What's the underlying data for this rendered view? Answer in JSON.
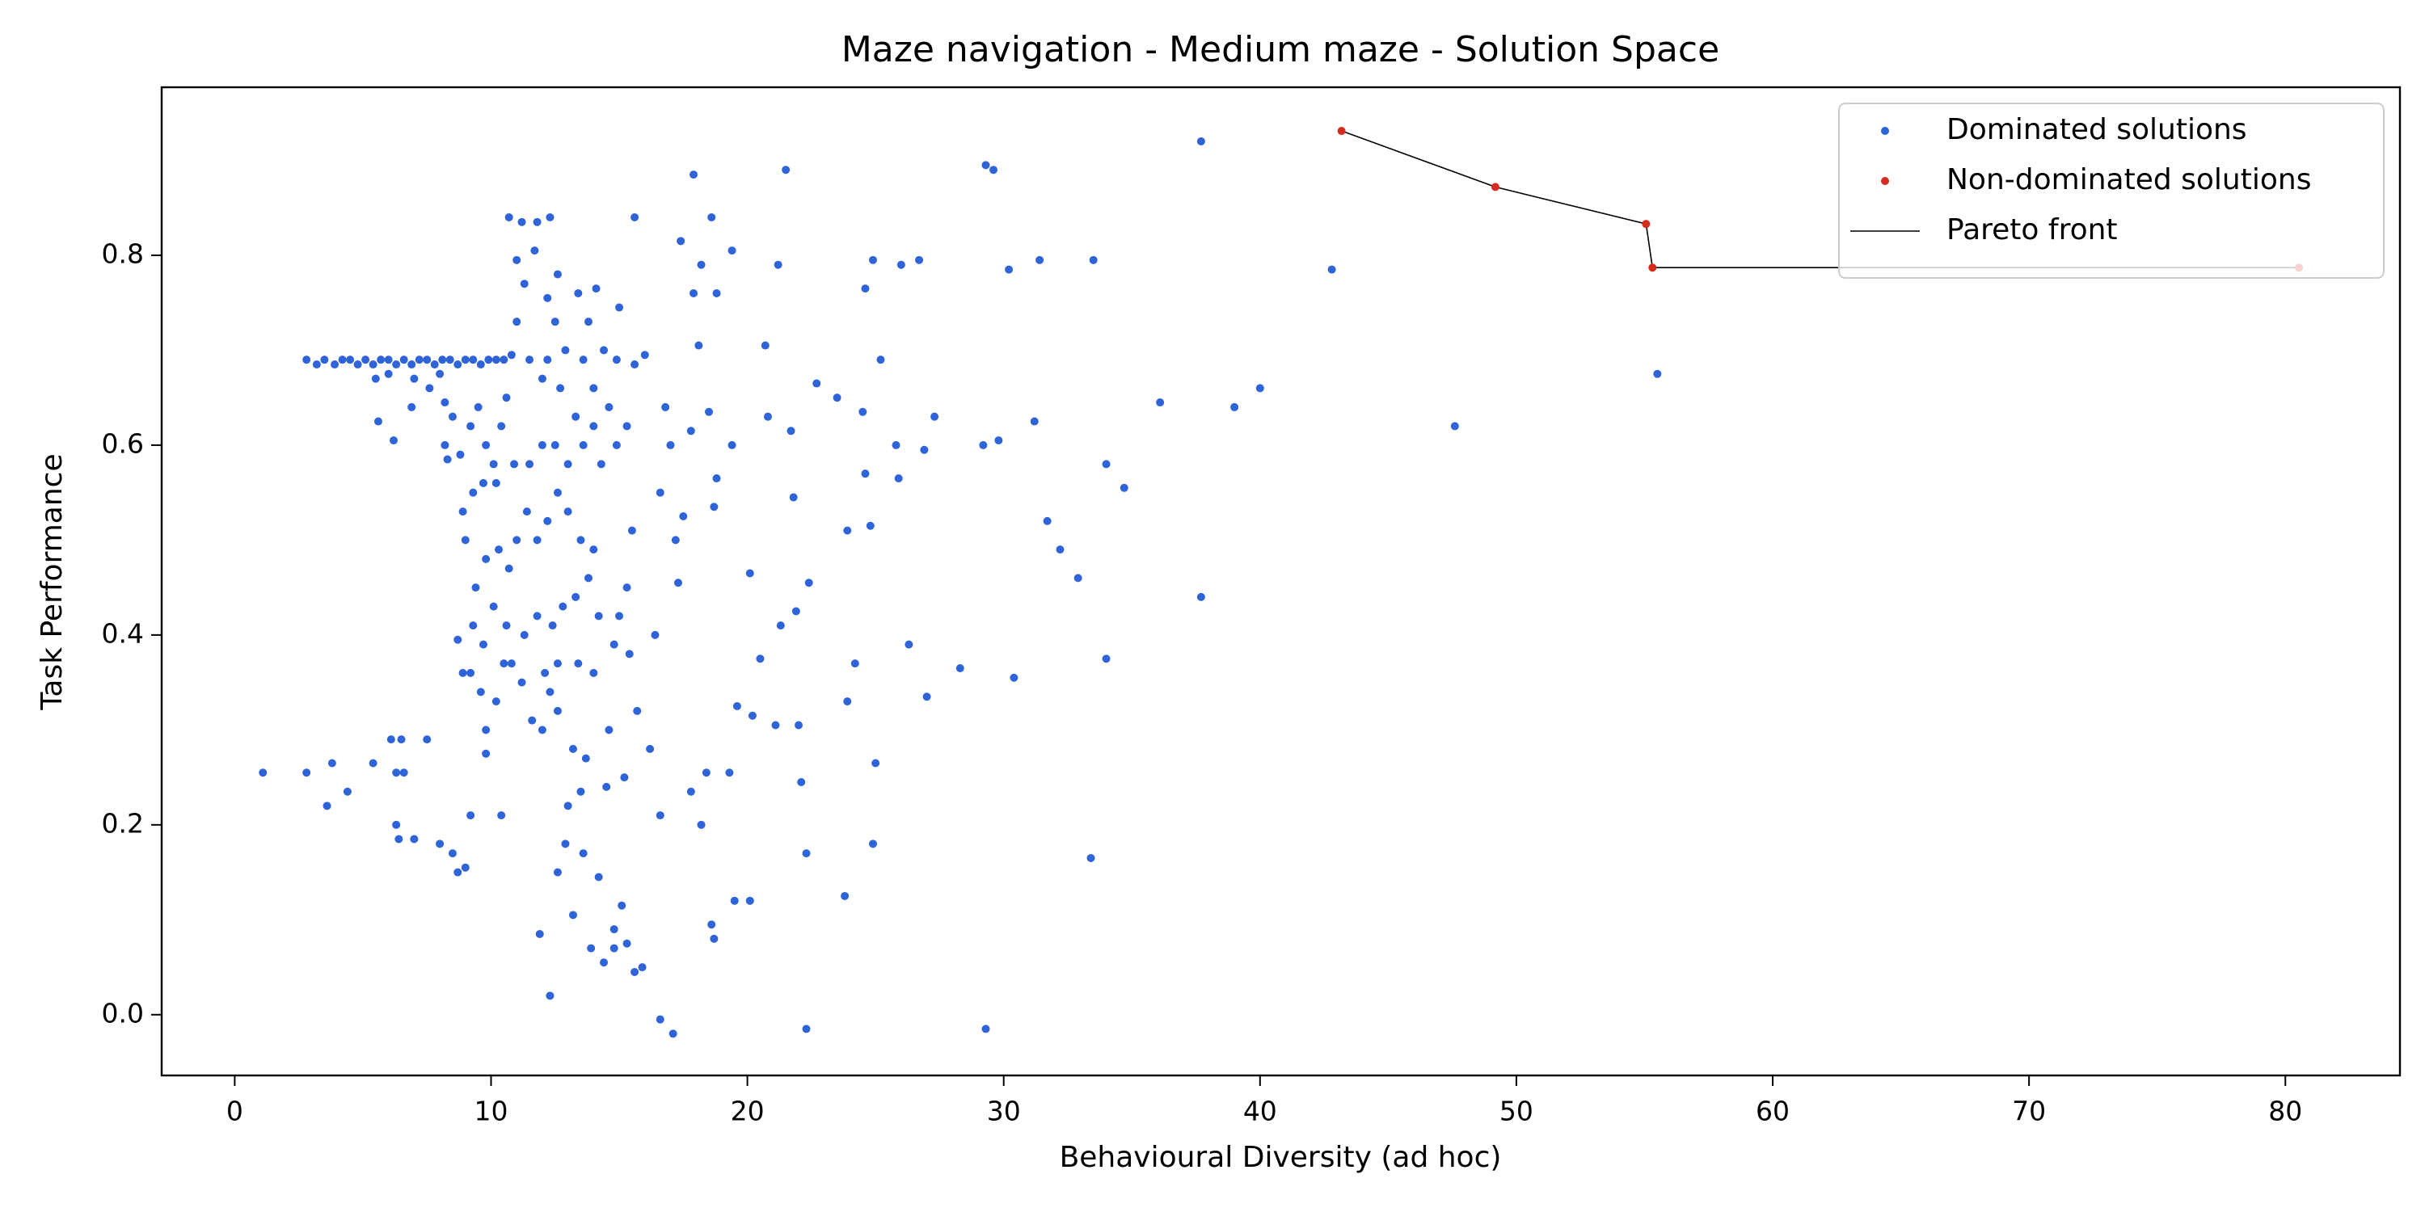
{
  "chart_data": {
    "type": "scatter",
    "title": "Maze navigation - Medium maze - Solution Space",
    "x_label": "Behavioural Diversity (ad hoc)",
    "y_label": "Task Performance",
    "xlim": [
      -2.85,
      84.47
    ],
    "ylim": [
      -0.064,
      0.977
    ],
    "xticks": [
      0,
      10,
      20,
      30,
      40,
      50,
      60,
      70,
      80
    ],
    "yticks": [
      {
        "value": 0,
        "label": "0.0"
      },
      0.2,
      0.4,
      0.6,
      0.8
    ],
    "grid": false,
    "legend": "upper right",
    "series": [
      {
        "name": "Dominated solutions",
        "type": "scatter",
        "color": "#2f63d8",
        "x": [
          1.1,
          2.8,
          3.6,
          3.8,
          4.4,
          5.4,
          6.1,
          6.3,
          6.5,
          6.6,
          6.3,
          6.4,
          7.0,
          7.5,
          8.0,
          8.5,
          8.7,
          9.0,
          9.2,
          10.4,
          9.8,
          2.8,
          3.2,
          3.5,
          3.9,
          4.2,
          4.5,
          4.8,
          5.1,
          5.4,
          5.7,
          6.0,
          6.3,
          6.6,
          6.9,
          7.2,
          7.5,
          7.8,
          8.1,
          8.4,
          8.7,
          9.0,
          9.3,
          9.6,
          9.9,
          10.2,
          10.5,
          10.8,
          5.5,
          6.0,
          7.0,
          7.6,
          8.0,
          8.2,
          5.6,
          6.2,
          6.9,
          8.2,
          8.8,
          9.2,
          9.5,
          9.8,
          10.1,
          10.4,
          10.6,
          8.5,
          8.3,
          10.7,
          11.2,
          11.8,
          12.3,
          11.0,
          11.7,
          12.6,
          11.3,
          12.2,
          13.4,
          14.1,
          11.0,
          12.5,
          13.8,
          15.0,
          15.6,
          17.4,
          17.9,
          18.6,
          19.4,
          17.9,
          18.2,
          18.8,
          21.5,
          21.2,
          24.9,
          24.6,
          26.0,
          26.7,
          29.3,
          29.6,
          30.2,
          31.4,
          33.5,
          37.7,
          42.8,
          36.1,
          39.0,
          40.0,
          47.6,
          55.5,
          37.7,
          34.0,
          34.7,
          34.0,
          33.4,
          32.9,
          32.2,
          31.7,
          31.2,
          29.8,
          29.2,
          28.3,
          27.3,
          27.0,
          26.9,
          26.3,
          25.9,
          25.8,
          25.2,
          24.8,
          24.9,
          25.0,
          24.6,
          24.5,
          24.2,
          23.8,
          23.9,
          23.5,
          23.9,
          22.7,
          22.4,
          22.3,
          22.3,
          22.1,
          22.0,
          21.9,
          21.8,
          21.7,
          21.3,
          21.1,
          20.8,
          20.7,
          20.5,
          20.1,
          20.1,
          20.2,
          19.5,
          19.6,
          19.3,
          19.4,
          18.6,
          18.7,
          18.4,
          18.8,
          18.7,
          18.5,
          18.1,
          18.2,
          17.8,
          17.8,
          17.5,
          17.3,
          17.2,
          17.0,
          16.8,
          16.6,
          16.4,
          16.6,
          16.2,
          16.6,
          17.1,
          29.3,
          30.4,
          15.9,
          15.6,
          15.3,
          15.1,
          14.8,
          14.8,
          14.4,
          13.9,
          13.2,
          12.6,
          12.3,
          11.9,
          12.9,
          13.0,
          13.5,
          13.6,
          14.2,
          14.5,
          15.2,
          15.7,
          15.4,
          14.8,
          14.6,
          14.0,
          13.7,
          13.2,
          12.6,
          12.3,
          12.0,
          11.6,
          11.2,
          10.8,
          10.5,
          10.2,
          9.8,
          9.6,
          9.2,
          8.9,
          8.7,
          9.3,
          9.7,
          10.1,
          10.6,
          11.3,
          11.8,
          12.4,
          12.8,
          13.3,
          13.8,
          14.2,
          14.0,
          13.5,
          13.0,
          12.6,
          12.2,
          11.8,
          11.4,
          11.0,
          10.7,
          10.3,
          9.8,
          9.4,
          9.0,
          8.9,
          9.3,
          9.7,
          10.2,
          10.9,
          11.5,
          12.0,
          12.5,
          13.0,
          13.6,
          14.3,
          14.9,
          15.3,
          14.6,
          14.0,
          13.3,
          12.7,
          12.0,
          11.5,
          12.2,
          12.9,
          13.6,
          14.4,
          14.9,
          15.6,
          16.0,
          14.0,
          15.5,
          15.3,
          15.0,
          13.4,
          12.6,
          12.1
        ],
        "values": [
          0.255,
          0.255,
          0.22,
          0.265,
          0.235,
          0.265,
          0.29,
          0.255,
          0.29,
          0.255,
          0.2,
          0.185,
          0.185,
          0.29,
          0.18,
          0.17,
          0.15,
          0.155,
          0.21,
          0.21,
          0.275,
          0.69,
          0.685,
          0.69,
          0.685,
          0.69,
          0.69,
          0.685,
          0.69,
          0.685,
          0.69,
          0.69,
          0.685,
          0.69,
          0.685,
          0.69,
          0.69,
          0.685,
          0.69,
          0.69,
          0.685,
          0.69,
          0.69,
          0.685,
          0.69,
          0.69,
          0.69,
          0.695,
          0.67,
          0.675,
          0.67,
          0.66,
          0.675,
          0.645,
          0.625,
          0.605,
          0.64,
          0.6,
          0.59,
          0.62,
          0.64,
          0.6,
          0.58,
          0.62,
          0.65,
          0.63,
          0.585,
          0.84,
          0.835,
          0.835,
          0.84,
          0.795,
          0.805,
          0.78,
          0.77,
          0.755,
          0.76,
          0.765,
          0.73,
          0.73,
          0.73,
          0.745,
          0.84,
          0.815,
          0.885,
          0.84,
          0.805,
          0.76,
          0.79,
          0.76,
          0.89,
          0.79,
          0.795,
          0.765,
          0.79,
          0.795,
          0.895,
          0.89,
          0.785,
          0.795,
          0.795,
          0.92,
          0.785,
          0.645,
          0.64,
          0.66,
          0.62,
          0.675,
          0.44,
          0.58,
          0.555,
          0.375,
          0.165,
          0.46,
          0.49,
          0.52,
          0.625,
          0.605,
          0.6,
          0.365,
          0.63,
          0.335,
          0.595,
          0.39,
          0.565,
          0.6,
          0.69,
          0.515,
          0.18,
          0.265,
          0.57,
          0.635,
          0.37,
          0.125,
          0.33,
          0.65,
          0.51,
          0.665,
          0.455,
          -0.015,
          0.17,
          0.245,
          0.305,
          0.425,
          0.545,
          0.615,
          0.41,
          0.305,
          0.63,
          0.705,
          0.375,
          0.465,
          0.12,
          0.315,
          0.12,
          0.325,
          0.255,
          0.6,
          0.095,
          0.08,
          0.255,
          0.565,
          0.535,
          0.635,
          0.705,
          0.2,
          0.235,
          0.615,
          0.525,
          0.455,
          0.5,
          0.6,
          0.64,
          0.55,
          0.4,
          0.21,
          0.28,
          -0.005,
          -0.02,
          -0.015,
          0.355,
          0.05,
          0.045,
          0.075,
          0.115,
          0.09,
          0.07,
          0.055,
          0.07,
          0.105,
          0.15,
          0.02,
          0.085,
          0.18,
          0.22,
          0.235,
          0.17,
          0.145,
          0.24,
          0.25,
          0.32,
          0.38,
          0.39,
          0.3,
          0.36,
          0.27,
          0.28,
          0.32,
          0.34,
          0.3,
          0.31,
          0.35,
          0.37,
          0.37,
          0.33,
          0.3,
          0.34,
          0.36,
          0.36,
          0.395,
          0.41,
          0.39,
          0.43,
          0.41,
          0.4,
          0.42,
          0.41,
          0.43,
          0.44,
          0.46,
          0.42,
          0.49,
          0.5,
          0.53,
          0.55,
          0.52,
          0.5,
          0.53,
          0.5,
          0.47,
          0.49,
          0.48,
          0.45,
          0.5,
          0.53,
          0.55,
          0.56,
          0.56,
          0.58,
          0.58,
          0.6,
          0.6,
          0.58,
          0.6,
          0.58,
          0.6,
          0.62,
          0.64,
          0.62,
          0.63,
          0.66,
          0.67,
          0.69,
          0.69,
          0.7,
          0.69,
          0.7,
          0.69,
          0.685,
          0.695,
          0.66,
          0.51,
          0.45,
          0.42,
          0.37,
          0.37,
          0.36
        ]
      },
      {
        "name": "Non-dominated solutions",
        "type": "scatter",
        "color": "#d62c1f",
        "x": [
          43.18,
          49.18,
          55.06,
          55.31,
          80.53
        ],
        "values": [
          0.931,
          0.872,
          0.833,
          0.787,
          0.787
        ]
      },
      {
        "name": "Pareto front",
        "type": "line",
        "color": "#000000",
        "x": [
          43.18,
          49.18,
          55.06,
          55.31,
          80.53
        ],
        "values": [
          0.931,
          0.872,
          0.833,
          0.787,
          0.787
        ]
      }
    ]
  }
}
